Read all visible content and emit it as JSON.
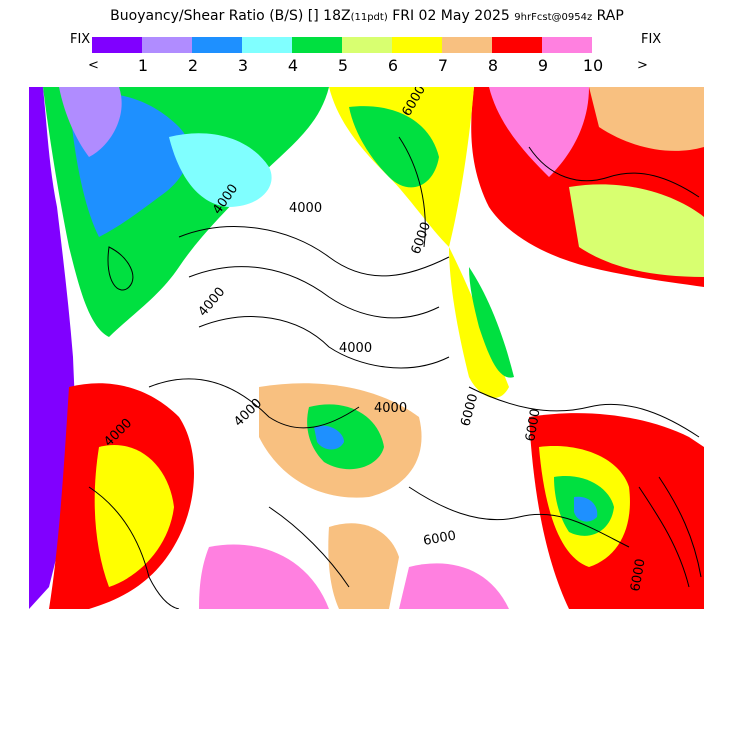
{
  "header": {
    "title_main": "Buoyancy/Shear Ratio (B/S)",
    "title_sep": "[]",
    "title_time": "18Z",
    "title_pdt": "(11pdt)",
    "title_date": "FRI 02 May 2025",
    "title_fcst": "9hrFcst@0954z",
    "title_model": "RAP"
  },
  "legend": {
    "fix_left": "FIX",
    "fix_right": "FIX",
    "nav_prev": "<",
    "nav_next": ">",
    "ticks": [
      "1",
      "2",
      "3",
      "4",
      "5",
      "6",
      "7",
      "8",
      "9",
      "10"
    ],
    "colors": [
      "#8000ff",
      "#b08cff",
      "#1e90ff",
      "#80ffff",
      "#00e040",
      "#d8ff70",
      "#ffff00",
      "#f8c080",
      "#ff0000",
      "#ff80e0"
    ]
  },
  "map": {
    "contour_labels": [
      "4000",
      "4000",
      "4000",
      "4000",
      "4000",
      "4000",
      "4000",
      "6000",
      "6000",
      "6000",
      "6000",
      "6000",
      "6000"
    ],
    "colors": {
      "ocean": "#8000ff",
      "none": "#ffffff"
    }
  }
}
